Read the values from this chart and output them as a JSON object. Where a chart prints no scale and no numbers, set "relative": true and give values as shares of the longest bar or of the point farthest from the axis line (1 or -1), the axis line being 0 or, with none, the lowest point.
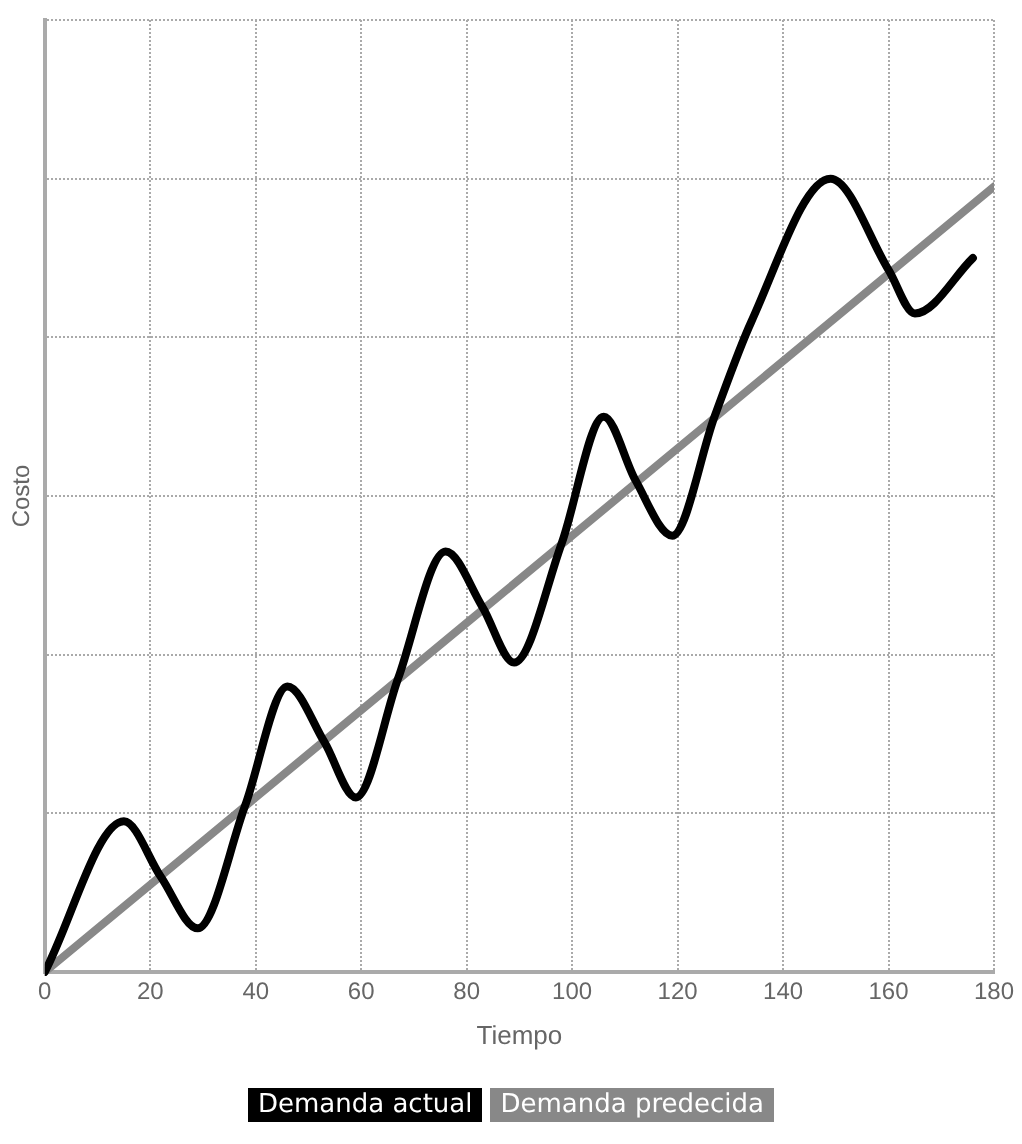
{
  "chart_data": {
    "type": "line",
    "xlabel": "Tiempo",
    "ylabel": "Costo",
    "relative": true,
    "xlim": [
      0,
      180
    ],
    "xticks": [
      0,
      20,
      40,
      60,
      80,
      100,
      120,
      140,
      160,
      180
    ],
    "grid": true,
    "legend": "bottom",
    "marker": "none",
    "line_style": "solid",
    "series": [
      {
        "name": "Demanda actual",
        "color": "#000000",
        "x": [
          0,
          15,
          22,
          29,
          38,
          46,
          53,
          59,
          67,
          76,
          83,
          89,
          98,
          106,
          112,
          119,
          127,
          134,
          149,
          160,
          165,
          176
        ],
        "values": [
          0,
          0.19,
          0.12,
          0.055,
          0.21,
          0.36,
          0.29,
          0.22,
          0.37,
          0.53,
          0.46,
          0.39,
          0.54,
          0.7,
          0.62,
          0.55,
          0.7,
          0.82,
          1,
          0.885,
          0.83,
          0.9
        ]
      },
      {
        "name": "Demanda predecida",
        "color": "#888888",
        "x": [
          0,
          180
        ],
        "values": [
          0,
          0.99
        ]
      }
    ]
  }
}
